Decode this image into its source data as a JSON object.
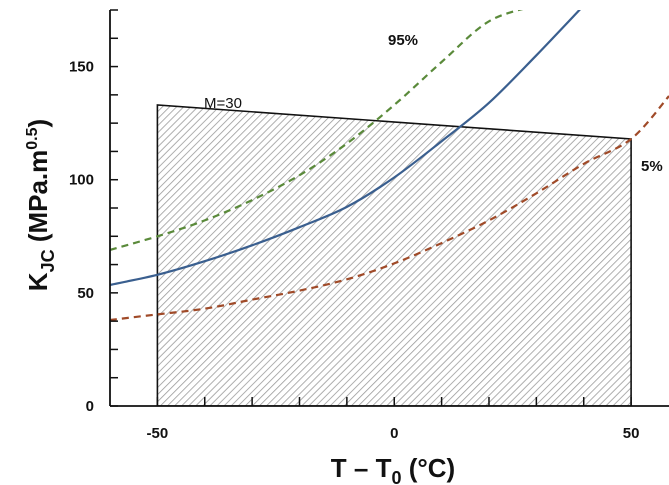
{
  "chart_data": {
    "type": "line",
    "xlabel": "T – T0 (°C)",
    "xlabel_main": "T – T",
    "xlabel_sub": "0",
    "xlabel_unit": " (°C)",
    "ylabel_main": "K",
    "ylabel_sub": "JC",
    "ylabel_unit": " (MPa.m",
    "ylabel_sup": "0.5",
    "ylabel_close": ")",
    "xlim": [
      -60,
      58
    ],
    "ylim": [
      0,
      175
    ],
    "x_ticks": [
      -50,
      0,
      50
    ],
    "x_tick_labels": [
      "-50",
      "0",
      "50"
    ],
    "y_ticks": [
      0,
      50,
      100,
      150
    ],
    "y_tick_labels": [
      "0",
      "50",
      "100",
      "150"
    ],
    "grid": false,
    "series": [
      {
        "name": "95%",
        "style": "dashed",
        "color": "#5a8a3a",
        "x": [
          -60,
          -50,
          -40,
          -30,
          -20,
          -10,
          0,
          10,
          20,
          30
        ],
        "y": [
          69,
          75,
          82,
          91,
          102,
          116,
          133,
          152,
          170,
          177
        ]
      },
      {
        "name": "",
        "style": "solid",
        "color": "#3a5f8f",
        "x": [
          -60,
          -50,
          -40,
          -30,
          -20,
          -10,
          0,
          10,
          20,
          30,
          40
        ],
        "y": [
          53.5,
          58,
          64,
          71,
          79,
          88,
          101,
          117,
          134,
          155,
          177
        ]
      },
      {
        "name": "5%",
        "style": "dashed",
        "color": "#a04a28",
        "x": [
          -60,
          -50,
          -40,
          -30,
          -20,
          -10,
          0,
          10,
          20,
          30,
          40,
          50,
          58
        ],
        "y": [
          38,
          40.5,
          43,
          47,
          51,
          56,
          63,
          72,
          82,
          94,
          107,
          118,
          137
        ]
      }
    ],
    "bounded_region": {
      "label": "M=30",
      "x": [
        -50,
        -50,
        50,
        50
      ],
      "y": [
        0,
        133,
        118,
        0
      ],
      "fill_pattern": "diagonal-hatch",
      "fill_color": "#b4b4b4"
    },
    "annotations": [
      {
        "text": "95%",
        "x": 0,
        "y": 160
      },
      {
        "text": "5%",
        "x": 53,
        "y": 116
      },
      {
        "text": "M=30",
        "x": -39,
        "y": 132
      }
    ]
  }
}
